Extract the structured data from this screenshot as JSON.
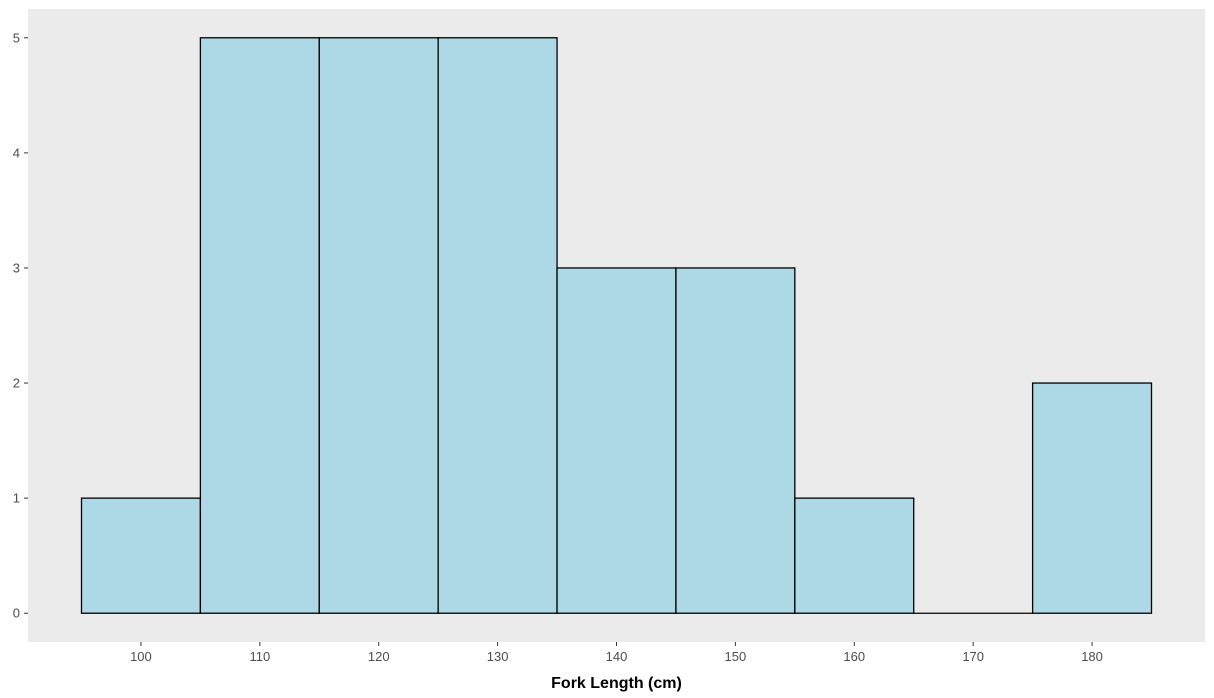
{
  "chart_data": {
    "type": "bar",
    "subtype": "histogram",
    "title": "",
    "xlabel": "Fork Length (cm)",
    "ylabel": "",
    "bin_width": 10,
    "bins": [
      {
        "start": 95,
        "end": 105,
        "count": 1
      },
      {
        "start": 105,
        "end": 115,
        "count": 5
      },
      {
        "start": 115,
        "end": 125,
        "count": 5
      },
      {
        "start": 125,
        "end": 135,
        "count": 5
      },
      {
        "start": 135,
        "end": 145,
        "count": 3
      },
      {
        "start": 145,
        "end": 155,
        "count": 3
      },
      {
        "start": 155,
        "end": 165,
        "count": 1
      },
      {
        "start": 165,
        "end": 175,
        "count": 0
      },
      {
        "start": 175,
        "end": 185,
        "count": 2
      }
    ],
    "xlim": [
      90.5,
      189.5
    ],
    "ylim": [
      -0.25,
      5.25
    ],
    "x_ticks": [
      100,
      110,
      120,
      130,
      140,
      150,
      160,
      170,
      180
    ],
    "y_ticks": [
      0,
      1,
      2,
      3,
      4,
      5
    ],
    "x_tick_labels": [
      "100",
      "110",
      "120",
      "130",
      "140",
      "150",
      "160",
      "170",
      "180"
    ],
    "y_tick_labels": [
      "0",
      "1",
      "2",
      "3",
      "4",
      "5"
    ],
    "grid": false,
    "legend": "none",
    "colors": {
      "bar_fill": "#add8e6",
      "bar_stroke": "#000000",
      "panel_background": "#ebebeb",
      "page_background": "#ffffff",
      "tick_color": "#333333",
      "tick_label_color": "#4d4d4d"
    }
  }
}
